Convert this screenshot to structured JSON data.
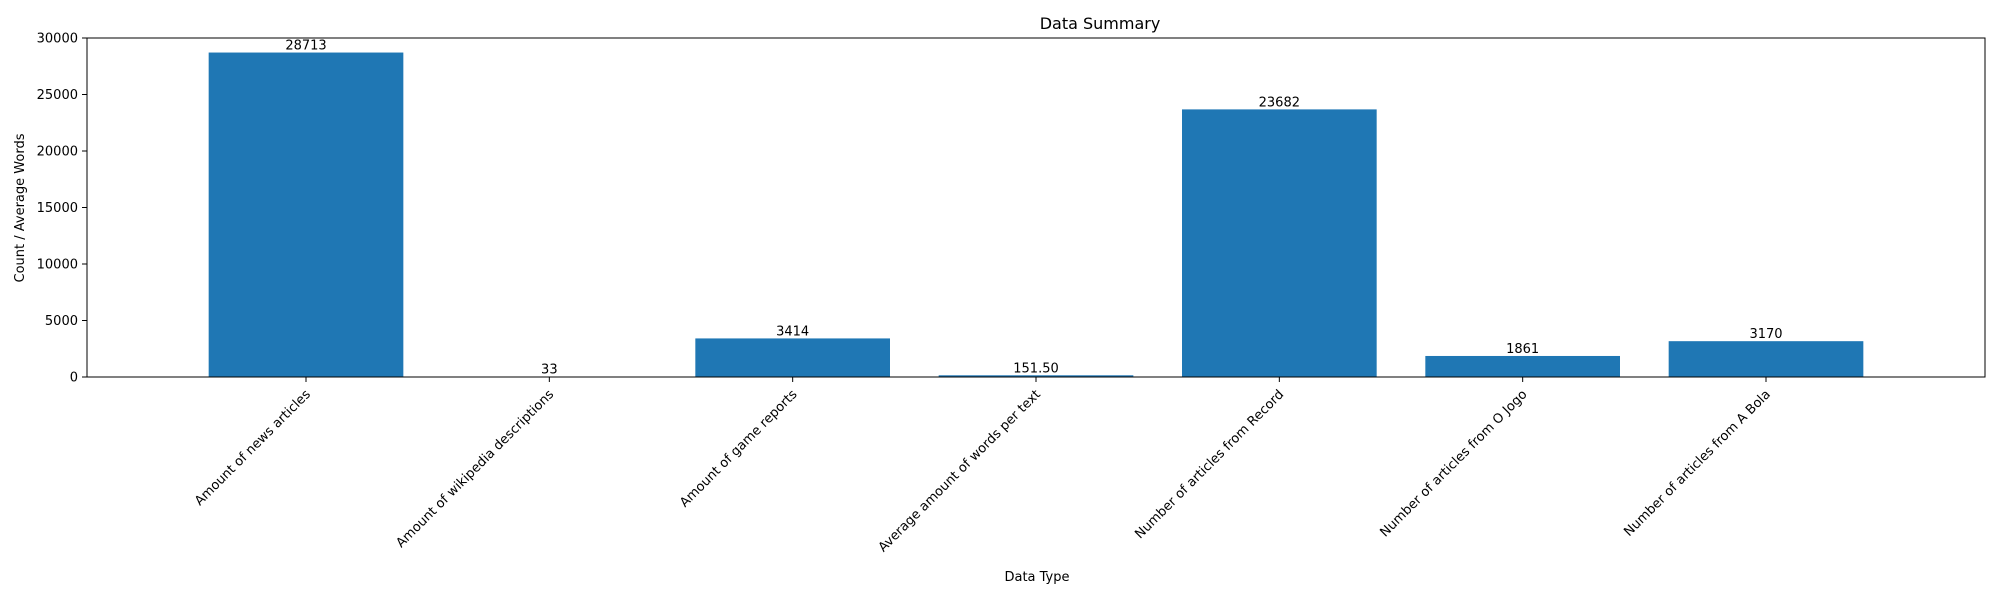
{
  "chart_data": {
    "type": "bar",
    "title": "Data Summary",
    "xlabel": "Data Type",
    "ylabel": "Count / Average Words",
    "categories": [
      "Amount of news articles",
      "Amount of wikipedia descriptions",
      "Amount of game reports",
      "Average amount of words per text",
      "Number of articles from Record",
      "Number of articles from O Jogo",
      "Number of articles from A Bola"
    ],
    "values": [
      28713,
      33,
      3414,
      151.5,
      23682,
      1861,
      3170
    ],
    "value_labels": [
      "28713",
      "33",
      "3414",
      "151.50",
      "23682",
      "1861",
      "3170"
    ],
    "ylim": [
      0,
      30000
    ],
    "yticks": [
      0,
      5000,
      10000,
      15000,
      20000,
      25000,
      30000
    ],
    "ytick_labels": [
      "0",
      "5000",
      "10000",
      "15000",
      "20000",
      "25000",
      "30000"
    ],
    "bar_color": "#1f77b4",
    "grid": false,
    "legend": "none"
  }
}
